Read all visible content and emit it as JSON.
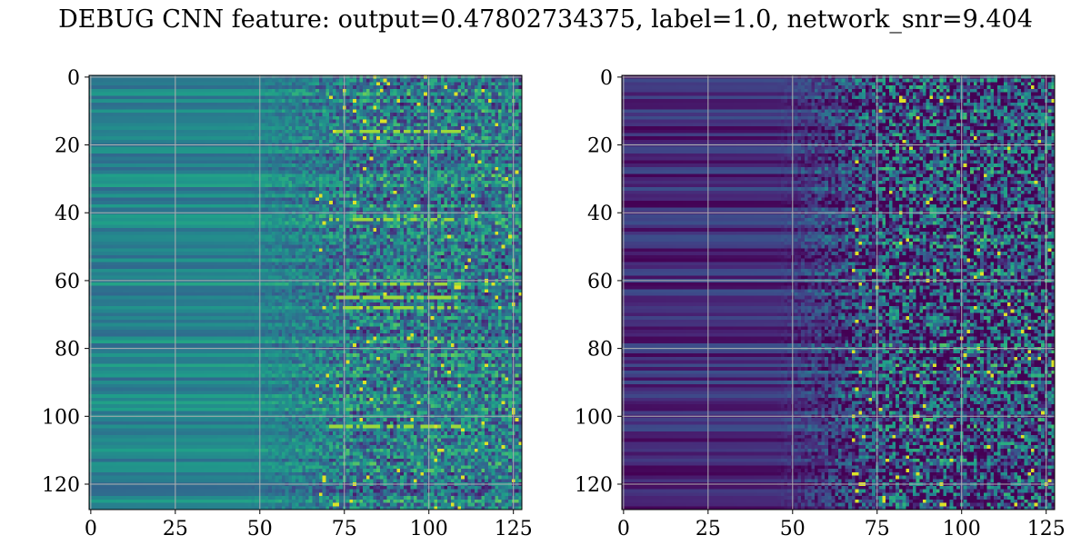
{
  "figure": {
    "suptitle": "DEBUG CNN feature: output=0.47802734375, label=1.0, network_snr=9.404"
  },
  "colormap": {
    "name": "viridis",
    "stops": [
      "#440154",
      "#482878",
      "#3e4989",
      "#31688e",
      "#26828e",
      "#1f9e89",
      "#35b779",
      "#6ece58",
      "#b5de2b",
      "#fde725"
    ]
  },
  "chart_data": [
    {
      "type": "heatmap",
      "title": "",
      "xlabel": "",
      "ylabel": "",
      "grid": true,
      "grid_color": "#b0b0b0",
      "xlim": [
        -0.5,
        127.5
      ],
      "ylim": [
        127.5,
        -0.5
      ],
      "rows": 128,
      "cols": 128,
      "xticks": [
        0,
        25,
        50,
        75,
        100,
        125
      ],
      "yticks": [
        0,
        20,
        40,
        60,
        80,
        100,
        120
      ],
      "value_range": [
        0,
        1
      ],
      "description_of_values": "left columns smooth teal/green bands; noisy mixture beyond column ~75",
      "row_band_seed": 11,
      "left_level": 0.45,
      "right_level": 0.42,
      "right_noise": 0.28,
      "bright_rows": [
        16,
        42,
        61,
        65,
        68,
        103
      ],
      "bright_row_level": 0.85
    },
    {
      "type": "heatmap",
      "title": "",
      "xlabel": "",
      "ylabel": "",
      "grid": true,
      "grid_color": "#b0b0b0",
      "xlim": [
        -0.5,
        127.5
      ],
      "ylim": [
        127.5,
        -0.5
      ],
      "rows": 128,
      "cols": 128,
      "xticks": [
        0,
        25,
        50,
        75,
        100,
        125
      ],
      "yticks": [
        0,
        20,
        40,
        60,
        80,
        100,
        120
      ],
      "value_range": [
        0,
        1
      ],
      "row_band_seed": 29,
      "left_level": 0.12,
      "right_level": 0.22,
      "right_noise": 0.45,
      "bright_rows": [],
      "bright_row_level": 0.0
    }
  ]
}
